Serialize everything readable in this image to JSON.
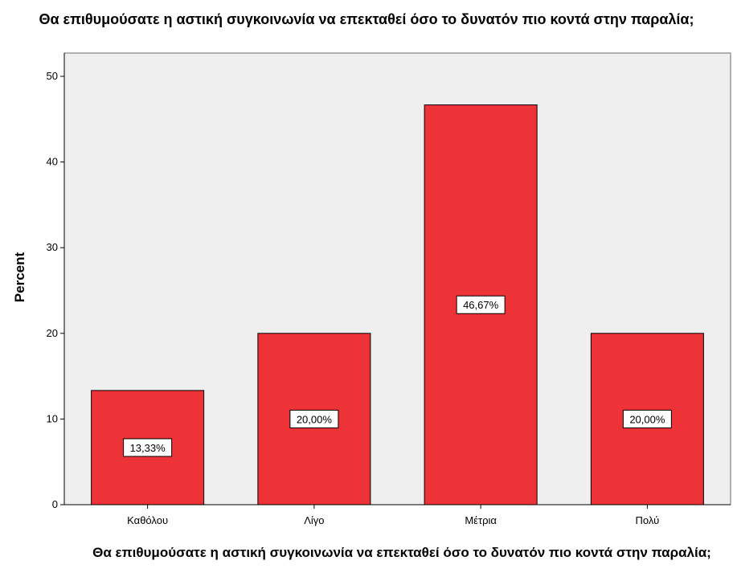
{
  "chart_data": {
    "type": "bar",
    "title": "Θα επιθυμούσατε η αστική συγκοινωνία να επεκταθεί όσο το δυνατόν πιο κοντά στην παραλία;",
    "xlabel": "Θα επιθυμούσατε η αστική συγκοινωνία να επεκταθεί όσο το δυνατόν πιο κοντά στην παραλία;",
    "ylabel": "Percent",
    "categories": [
      "Καθόλου",
      "Λίγο",
      "Μέτρια",
      "Πολύ"
    ],
    "values": [
      13.33,
      20.0,
      46.67,
      20.0
    ],
    "data_labels": [
      "13,33%",
      "20,00%",
      "46,67%",
      "20,00%"
    ],
    "ylim": [
      0,
      50
    ],
    "yticks": [
      "0",
      "10",
      "20",
      "30",
      "40",
      "50"
    ],
    "bar_color": "#ee3338",
    "plot_background": "#efefef",
    "grid": false,
    "legend": "none"
  }
}
